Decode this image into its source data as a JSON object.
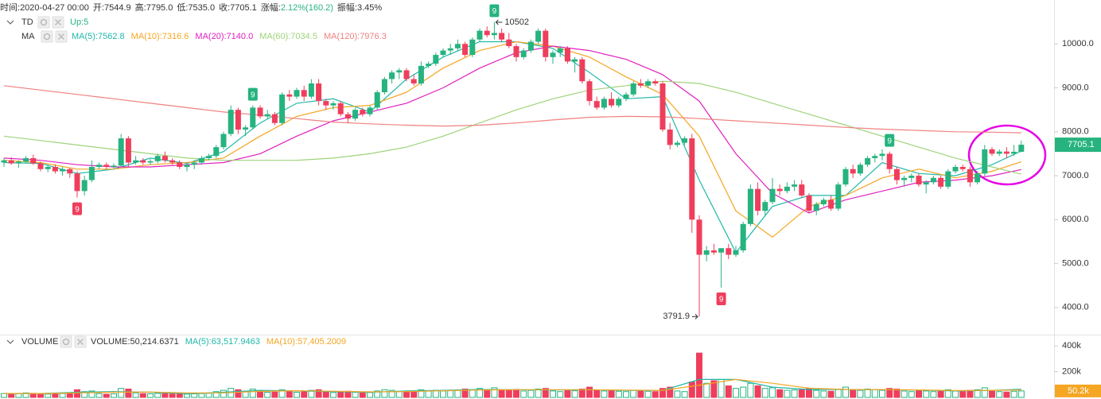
{
  "chart_data": {
    "type": "candlestick",
    "header": [
      {
        "label": "时间:",
        "value": "2020-04-27 00:00"
      },
      {
        "label": "开:",
        "value": "7544.9"
      },
      {
        "label": "高:",
        "value": "7795.0"
      },
      {
        "label": "低:",
        "value": "7535.0"
      },
      {
        "label": "收:",
        "value": "7705.1"
      },
      {
        "label": "涨幅:",
        "value": "2.12%(160.2)",
        "color": "#26b37f"
      },
      {
        "label": "振幅:",
        "value": "3.45%"
      }
    ],
    "td_label": "TD",
    "td_up": "Up:5",
    "ma_label": "MA",
    "volume_label": "VOLUME",
    "volume_value": "VOLUME:50,214.6371",
    "up_color": "#26b37f",
    "down_color": "#ef3e5c",
    "ylim": [
      3400,
      11000
    ],
    "yticks": [
      {
        "value": 10000,
        "label": "10000.0"
      },
      {
        "value": 9000,
        "label": "9000.0"
      },
      {
        "value": 8000,
        "label": "8000.0"
      },
      {
        "value": 7000,
        "label": "7000.0"
      },
      {
        "value": 6000,
        "label": "6000.0"
      },
      {
        "value": 5000,
        "label": "5000.0"
      },
      {
        "value": 4000,
        "label": "4000.0"
      }
    ],
    "volume_ylim": [
      0,
      470000
    ],
    "volume_yticks": [
      {
        "value": 400000,
        "label": "400k"
      },
      {
        "value": 200000,
        "label": "200k"
      }
    ],
    "ohlc": [
      [
        7300,
        7400,
        7200,
        7350
      ],
      [
        7350,
        7420,
        7250,
        7280
      ],
      [
        7280,
        7350,
        7180,
        7320
      ],
      [
        7320,
        7450,
        7280,
        7400
      ],
      [
        7400,
        7480,
        7250,
        7280
      ],
      [
        7280,
        7320,
        7100,
        7150
      ],
      [
        7150,
        7250,
        7080,
        7200
      ],
      [
        7200,
        7260,
        7050,
        7100
      ],
      [
        7100,
        7200,
        7000,
        7150
      ],
      [
        7150,
        7180,
        6950,
        7050
      ],
      [
        7050,
        7100,
        6500,
        6650
      ],
      [
        6650,
        7000,
        6550,
        6900
      ],
      [
        6900,
        7350,
        6850,
        7200
      ],
      [
        7200,
        7300,
        7150,
        7250
      ],
      [
        7250,
        7300,
        7150,
        7200
      ],
      [
        7200,
        7280,
        7150,
        7230
      ],
      [
        7230,
        7950,
        7200,
        7850
      ],
      [
        7850,
        7900,
        7200,
        7300
      ],
      [
        7300,
        7450,
        7250,
        7350
      ],
      [
        7350,
        7400,
        7250,
        7300
      ],
      [
        7300,
        7380,
        7250,
        7330
      ],
      [
        7330,
        7500,
        7280,
        7450
      ],
      [
        7450,
        7550,
        7300,
        7350
      ],
      [
        7350,
        7400,
        7250,
        7300
      ],
      [
        7300,
        7350,
        7150,
        7200
      ],
      [
        7200,
        7300,
        7100,
        7250
      ],
      [
        7250,
        7350,
        7150,
        7300
      ],
      [
        7300,
        7450,
        7250,
        7400
      ],
      [
        7400,
        7500,
        7350,
        7450
      ],
      [
        7450,
        7700,
        7400,
        7650
      ],
      [
        7650,
        8000,
        7600,
        7950
      ],
      [
        7950,
        8600,
        7900,
        8500
      ],
      [
        8500,
        8550,
        7950,
        8050
      ],
      [
        8050,
        8150,
        7900,
        8100
      ],
      [
        8100,
        8600,
        8050,
        8550
      ],
      [
        8550,
        8600,
        8300,
        8350
      ],
      [
        8350,
        8500,
        8300,
        8400
      ],
      [
        8400,
        8450,
        8150,
        8200
      ],
      [
        8200,
        8900,
        8150,
        8850
      ],
      [
        8850,
        8950,
        8700,
        8800
      ],
      [
        8800,
        9000,
        8750,
        8950
      ],
      [
        8950,
        9050,
        8700,
        8800
      ],
      [
        8800,
        9200,
        8750,
        9100
      ],
      [
        9100,
        9200,
        8600,
        8700
      ],
      [
        8700,
        8750,
        8500,
        8600
      ],
      [
        8600,
        8700,
        8500,
        8650
      ],
      [
        8650,
        8700,
        8350,
        8400
      ],
      [
        8400,
        8450,
        8200,
        8300
      ],
      [
        8300,
        8550,
        8250,
        8500
      ],
      [
        8500,
        8550,
        8350,
        8400
      ],
      [
        8400,
        8600,
        8350,
        8550
      ],
      [
        8550,
        8950,
        8500,
        8900
      ],
      [
        8900,
        9250,
        8850,
        9200
      ],
      [
        9200,
        9400,
        9100,
        9350
      ],
      [
        9350,
        9450,
        9200,
        9400
      ],
      [
        9400,
        9450,
        9150,
        9200
      ],
      [
        9200,
        9300,
        9050,
        9100
      ],
      [
        9100,
        9600,
        9050,
        9500
      ],
      [
        9500,
        9600,
        9450,
        9550
      ],
      [
        9550,
        9800,
        9500,
        9750
      ],
      [
        9750,
        9900,
        9700,
        9850
      ],
      [
        9850,
        10000,
        9750,
        9900
      ],
      [
        9900,
        10100,
        9850,
        10000
      ],
      [
        10000,
        10050,
        9700,
        9750
      ],
      [
        9750,
        10150,
        9700,
        10100
      ],
      [
        10100,
        10350,
        10050,
        10300
      ],
      [
        10300,
        10400,
        10150,
        10200
      ],
      [
        10200,
        10502,
        10100,
        10250
      ],
      [
        10250,
        10350,
        10050,
        10100
      ],
      [
        10100,
        10250,
        9900,
        9950
      ],
      [
        9950,
        10000,
        9600,
        9700
      ],
      [
        9700,
        9900,
        9650,
        9850
      ],
      [
        9850,
        10100,
        9800,
        10050
      ],
      [
        10050,
        10350,
        10000,
        10300
      ],
      [
        10300,
        10350,
        9600,
        9700
      ],
      [
        9700,
        9850,
        9550,
        9800
      ],
      [
        9800,
        9950,
        9700,
        9900
      ],
      [
        9900,
        9950,
        9550,
        9600
      ],
      [
        9600,
        9700,
        9350,
        9650
      ],
      [
        9650,
        9700,
        9100,
        9150
      ],
      [
        9150,
        9200,
        8600,
        8700
      ],
      [
        8700,
        8800,
        8500,
        8550
      ],
      [
        8550,
        8800,
        8500,
        8750
      ],
      [
        8750,
        8900,
        8550,
        8600
      ],
      [
        8600,
        8800,
        8550,
        8750
      ],
      [
        8750,
        8900,
        8700,
        8850
      ],
      [
        8850,
        9150,
        8800,
        9100
      ],
      [
        9100,
        9200,
        9000,
        9050
      ],
      [
        9050,
        9200,
        9000,
        9150
      ],
      [
        9150,
        9200,
        9050,
        9100
      ],
      [
        9100,
        9150,
        8000,
        8050
      ],
      [
        8050,
        8200,
        7600,
        7700
      ],
      [
        7700,
        7800,
        7650,
        7750
      ],
      [
        7750,
        7900,
        7700,
        7850
      ],
      [
        7850,
        7950,
        5700,
        6000
      ],
      [
        6000,
        6100,
        3791.9,
        5200
      ],
      [
        5200,
        5400,
        5050,
        5300
      ],
      [
        5300,
        5450,
        5200,
        5250
      ],
      [
        5250,
        5350,
        4450,
        5350
      ],
      [
        5350,
        5450,
        5100,
        5200
      ],
      [
        5200,
        5400,
        5150,
        5300
      ],
      [
        5300,
        5950,
        5250,
        5900
      ],
      [
        5900,
        6800,
        5850,
        6700
      ],
      [
        6700,
        6850,
        6100,
        6200
      ],
      [
        6200,
        6450,
        6100,
        6400
      ],
      [
        6400,
        6950,
        6350,
        6700
      ],
      [
        6700,
        6800,
        6550,
        6650
      ],
      [
        6650,
        6850,
        6600,
        6750
      ],
      [
        6750,
        6900,
        6650,
        6800
      ],
      [
        6800,
        6900,
        6500,
        6550
      ],
      [
        6550,
        6600,
        6150,
        6200
      ],
      [
        6200,
        6400,
        6100,
        6350
      ],
      [
        6350,
        6500,
        6300,
        6450
      ],
      [
        6450,
        6550,
        6200,
        6250
      ],
      [
        6250,
        6850,
        6200,
        6800
      ],
      [
        6800,
        7200,
        6750,
        7150
      ],
      [
        7150,
        7250,
        6950,
        7050
      ],
      [
        7050,
        7300,
        7000,
        7250
      ],
      [
        7250,
        7450,
        7200,
        7400
      ],
      [
        7400,
        7500,
        7300,
        7450
      ],
      [
        7450,
        7600,
        7350,
        7500
      ],
      [
        7500,
        7550,
        7050,
        7150
      ],
      [
        7150,
        7200,
        6800,
        6900
      ],
      [
        6900,
        7000,
        6750,
        6950
      ],
      [
        6950,
        7050,
        6850,
        7000
      ],
      [
        7000,
        7050,
        6750,
        6800
      ],
      [
        6800,
        6900,
        6600,
        6850
      ],
      [
        6850,
        7000,
        6800,
        6950
      ],
      [
        6950,
        7000,
        6700,
        6750
      ],
      [
        6750,
        7150,
        6700,
        7100
      ],
      [
        7100,
        7250,
        7050,
        7200
      ],
      [
        7200,
        7250,
        7100,
        7150
      ],
      [
        7150,
        7200,
        6750,
        6850
      ],
      [
        6850,
        7100,
        6800,
        7050
      ],
      [
        7050,
        7700,
        7000,
        7600
      ],
      [
        7600,
        7650,
        7450,
        7500
      ],
      [
        7500,
        7600,
        7450,
        7550
      ],
      [
        7550,
        7650,
        7400,
        7500
      ],
      [
        7500,
        7700,
        7450,
        7544.9
      ],
      [
        7544.9,
        7795.0,
        7535.0,
        7705.1
      ]
    ],
    "volume": [
      30000,
      25000,
      28000,
      35000,
      32000,
      30000,
      26000,
      28000,
      30000,
      33000,
      60000,
      45000,
      50000,
      30000,
      25000,
      28000,
      70000,
      65000,
      35000,
      30000,
      28000,
      32000,
      30000,
      27000,
      30000,
      26000,
      28000,
      30000,
      32000,
      45000,
      55000,
      70000,
      60000,
      45000,
      65000,
      50000,
      40000,
      42000,
      60000,
      45000,
      40000,
      45000,
      55000,
      60000,
      45000,
      38000,
      42000,
      48000,
      40000,
      35000,
      38000,
      50000,
      60000,
      55000,
      45000,
      48000,
      42000,
      60000,
      50000,
      55000,
      50000,
      52000,
      58000,
      65000,
      60000,
      70000,
      55000,
      75000,
      60000,
      58000,
      62000,
      50000,
      55000,
      65000,
      70000,
      50000,
      45000,
      55000,
      52000,
      65000,
      80000,
      55000,
      50000,
      52000,
      48000,
      45000,
      55000,
      50000,
      48000,
      45000,
      70000,
      80000,
      50000,
      45000,
      120000,
      345000,
      110000,
      130000,
      140000,
      90000,
      70000,
      80000,
      110000,
      90000,
      70000,
      75000,
      60000,
      55000,
      58000,
      60000,
      70000,
      55000,
      50000,
      48000,
      65000,
      80000,
      60000,
      55000,
      65000,
      60000,
      55000,
      70000,
      65000,
      50000,
      45000,
      55000,
      50000,
      45000,
      48000,
      60000,
      50000,
      45000,
      55000,
      60000,
      75000,
      50000,
      45000,
      42000,
      48000,
      50214.6371
    ],
    "last_volume_label": "50.2k",
    "ma_x": [
      0,
      5,
      10,
      15,
      20,
      25,
      30,
      35,
      40,
      45,
      50,
      55,
      60,
      65,
      70,
      75,
      80,
      85,
      90,
      95,
      100,
      105,
      110,
      115,
      120,
      125,
      130,
      135,
      139
    ],
    "series": [
      {
        "name": "MA(5):7562.8",
        "color": "#1fb8a8",
        "values": [
          7300,
          7280,
          7050,
          7150,
          7400,
          7280,
          7550,
          8200,
          8650,
          8750,
          8450,
          9200,
          9700,
          10050,
          10050,
          9900,
          9350,
          8750,
          8800,
          6900,
          5250,
          6300,
          6550,
          6550,
          7300,
          7050,
          7000,
          7250,
          7562.8
        ]
      },
      {
        "name": "MA(10):7316.6",
        "color": "#f5a623",
        "values": [
          7350,
          7300,
          7150,
          7150,
          7250,
          7300,
          7400,
          7900,
          8350,
          8550,
          8600,
          8900,
          9450,
          9850,
          10050,
          9950,
          9700,
          9250,
          8850,
          7900,
          6200,
          5600,
          6300,
          6550,
          6950,
          7150,
          6950,
          7100,
          7316.6
        ]
      },
      {
        "name": "MA(20):7140.0",
        "color": "#e020c0",
        "values": [
          7400,
          7350,
          7250,
          7200,
          7200,
          7250,
          7300,
          7500,
          7900,
          8250,
          8450,
          8650,
          9000,
          9450,
          9800,
          9950,
          9850,
          9650,
          9300,
          8700,
          7500,
          6600,
          6150,
          6450,
          6650,
          6850,
          6900,
          7000,
          7140.0
        ]
      },
      {
        "name": "MA(60):7034.5",
        "color": "#9ed37a",
        "values": [
          7900,
          7800,
          7700,
          7600,
          7500,
          7400,
          7350,
          7350,
          7350,
          7400,
          7500,
          7650,
          7900,
          8200,
          8500,
          8750,
          8950,
          9050,
          9150,
          9100,
          8900,
          8650,
          8400,
          8150,
          7900,
          7650,
          7400,
          7200,
          7034.5
        ]
      },
      {
        "name": "MA(120):7976.3",
        "color": "#f08080",
        "values": [
          9050,
          8950,
          8850,
          8750,
          8650,
          8550,
          8450,
          8380,
          8300,
          8220,
          8180,
          8150,
          8130,
          8150,
          8200,
          8270,
          8330,
          8350,
          8340,
          8300,
          8250,
          8200,
          8150,
          8100,
          8060,
          8030,
          8000,
          7990,
          7976.3
        ]
      }
    ],
    "volume_series": [
      {
        "name": "MA(5):63,517.9463",
        "color": "#1fb8a8",
        "values": [
          30000,
          30000,
          40000,
          45000,
          40000,
          29000,
          40000,
          55000,
          50000,
          45000,
          40000,
          50000,
          55000,
          62000,
          60000,
          58000,
          60000,
          55000,
          55000,
          140000,
          140000,
          80000,
          62000,
          62000,
          60000,
          57000,
          50000,
          55000,
          63517.9463
        ]
      },
      {
        "name": "MA(10):57,405.2009",
        "color": "#f5a623",
        "values": [
          31000,
          30000,
          35000,
          40000,
          42000,
          35000,
          35000,
          47000,
          52000,
          48000,
          43000,
          45000,
          52000,
          58000,
          60000,
          60000,
          60000,
          57000,
          55000,
          95000,
          140000,
          110000,
          72000,
          62000,
          61000,
          58000,
          53000,
          55000,
          57405.2009
        ]
      }
    ],
    "td_marks": [
      {
        "index": 10,
        "text": "9",
        "side": "down"
      },
      {
        "index": 34,
        "text": "9",
        "side": "up"
      },
      {
        "index": 67,
        "text": "9",
        "side": "up"
      },
      {
        "index": 98,
        "text": "9",
        "side": "down"
      },
      {
        "index": 121,
        "text": "9",
        "side": "up"
      }
    ]
  }
}
